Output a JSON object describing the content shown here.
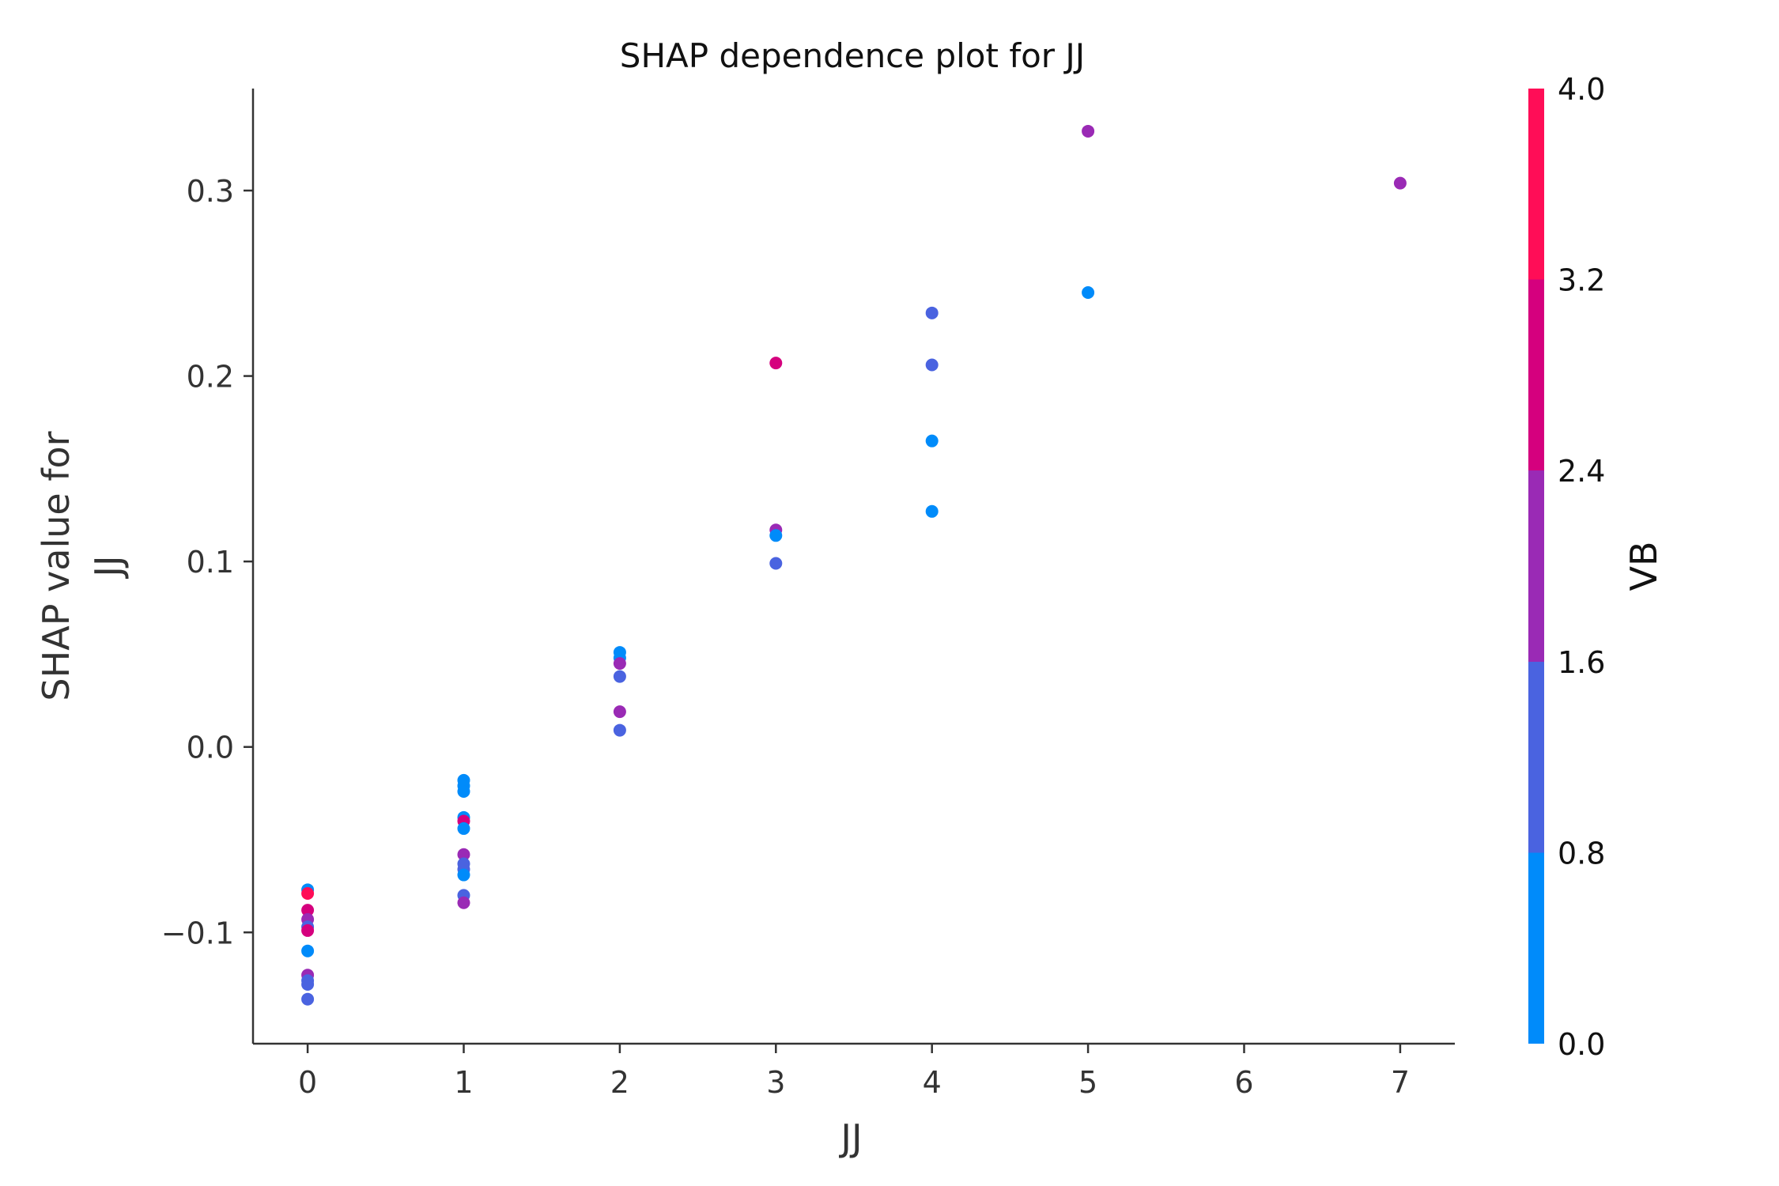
{
  "chart_data": {
    "type": "scatter",
    "title": "SHAP dependence plot for JJ",
    "xlabel": "JJ",
    "ylabel_lines": [
      "SHAP value for",
      "JJ"
    ],
    "xlim": [
      -0.35,
      7.35
    ],
    "ylim": [
      -0.16,
      0.355
    ],
    "x_ticks": [
      0,
      1,
      2,
      3,
      4,
      5,
      6,
      7
    ],
    "x_tick_labels": [
      "0",
      "1",
      "2",
      "3",
      "4",
      "5",
      "6",
      "7"
    ],
    "y_ticks": [
      -0.1,
      0.0,
      0.1,
      0.2,
      0.3
    ],
    "y_tick_labels": [
      "−0.1",
      "0.0",
      "0.1",
      "0.2",
      "0.3"
    ],
    "grid": false,
    "colorbar": {
      "label": "VB",
      "range": [
        0,
        4
      ],
      "ticks": [
        0,
        0.8,
        1.6,
        2.4,
        3.2,
        4.0
      ],
      "tick_labels": [
        "0.0",
        "0.8",
        "1.6",
        "2.4",
        "3.2",
        "4.0"
      ],
      "colors": [
        "#008bfa",
        "#4a63e0",
        "#9a2ab5",
        "#d5007e",
        "#ff0d57"
      ]
    },
    "points": [
      {
        "x": 0,
        "y": -0.077,
        "c": 0.4
      },
      {
        "x": 0,
        "y": -0.079,
        "c": 3.6
      },
      {
        "x": 0,
        "y": -0.088,
        "c": 2.8
      },
      {
        "x": 0,
        "y": -0.093,
        "c": 2.0
      },
      {
        "x": 0,
        "y": -0.097,
        "c": 1.2
      },
      {
        "x": 0,
        "y": -0.099,
        "c": 2.8
      },
      {
        "x": 0,
        "y": -0.11,
        "c": 0.4
      },
      {
        "x": 0,
        "y": -0.123,
        "c": 2.0
      },
      {
        "x": 0,
        "y": -0.126,
        "c": 1.2
      },
      {
        "x": 0,
        "y": -0.128,
        "c": 1.2
      },
      {
        "x": 0,
        "y": -0.136,
        "c": 1.2
      },
      {
        "x": 1,
        "y": -0.018,
        "c": 0.4
      },
      {
        "x": 1,
        "y": -0.021,
        "c": 0.4
      },
      {
        "x": 1,
        "y": -0.024,
        "c": 0.4
      },
      {
        "x": 1,
        "y": -0.038,
        "c": 0.4
      },
      {
        "x": 1,
        "y": -0.04,
        "c": 2.8
      },
      {
        "x": 1,
        "y": -0.044,
        "c": 0.4
      },
      {
        "x": 1,
        "y": -0.058,
        "c": 2.0
      },
      {
        "x": 1,
        "y": -0.063,
        "c": 1.2
      },
      {
        "x": 1,
        "y": -0.066,
        "c": 1.2
      },
      {
        "x": 1,
        "y": -0.069,
        "c": 0.4
      },
      {
        "x": 1,
        "y": -0.08,
        "c": 1.2
      },
      {
        "x": 1,
        "y": -0.084,
        "c": 2.0
      },
      {
        "x": 2,
        "y": 0.051,
        "c": 0.4
      },
      {
        "x": 2,
        "y": 0.048,
        "c": 0.4
      },
      {
        "x": 2,
        "y": 0.045,
        "c": 2.0
      },
      {
        "x": 2,
        "y": 0.038,
        "c": 1.2
      },
      {
        "x": 2,
        "y": 0.019,
        "c": 2.0
      },
      {
        "x": 2,
        "y": 0.009,
        "c": 1.2
      },
      {
        "x": 3,
        "y": 0.207,
        "c": 2.8
      },
      {
        "x": 3,
        "y": 0.117,
        "c": 2.0
      },
      {
        "x": 3,
        "y": 0.114,
        "c": 0.4
      },
      {
        "x": 3,
        "y": 0.099,
        "c": 1.2
      },
      {
        "x": 4,
        "y": 0.234,
        "c": 1.2
      },
      {
        "x": 4,
        "y": 0.206,
        "c": 1.2
      },
      {
        "x": 4,
        "y": 0.165,
        "c": 0.4
      },
      {
        "x": 4,
        "y": 0.127,
        "c": 0.4
      },
      {
        "x": 5,
        "y": 0.332,
        "c": 2.0
      },
      {
        "x": 5,
        "y": 0.245,
        "c": 0.4
      },
      {
        "x": 7,
        "y": 0.304,
        "c": 2.0
      }
    ]
  }
}
